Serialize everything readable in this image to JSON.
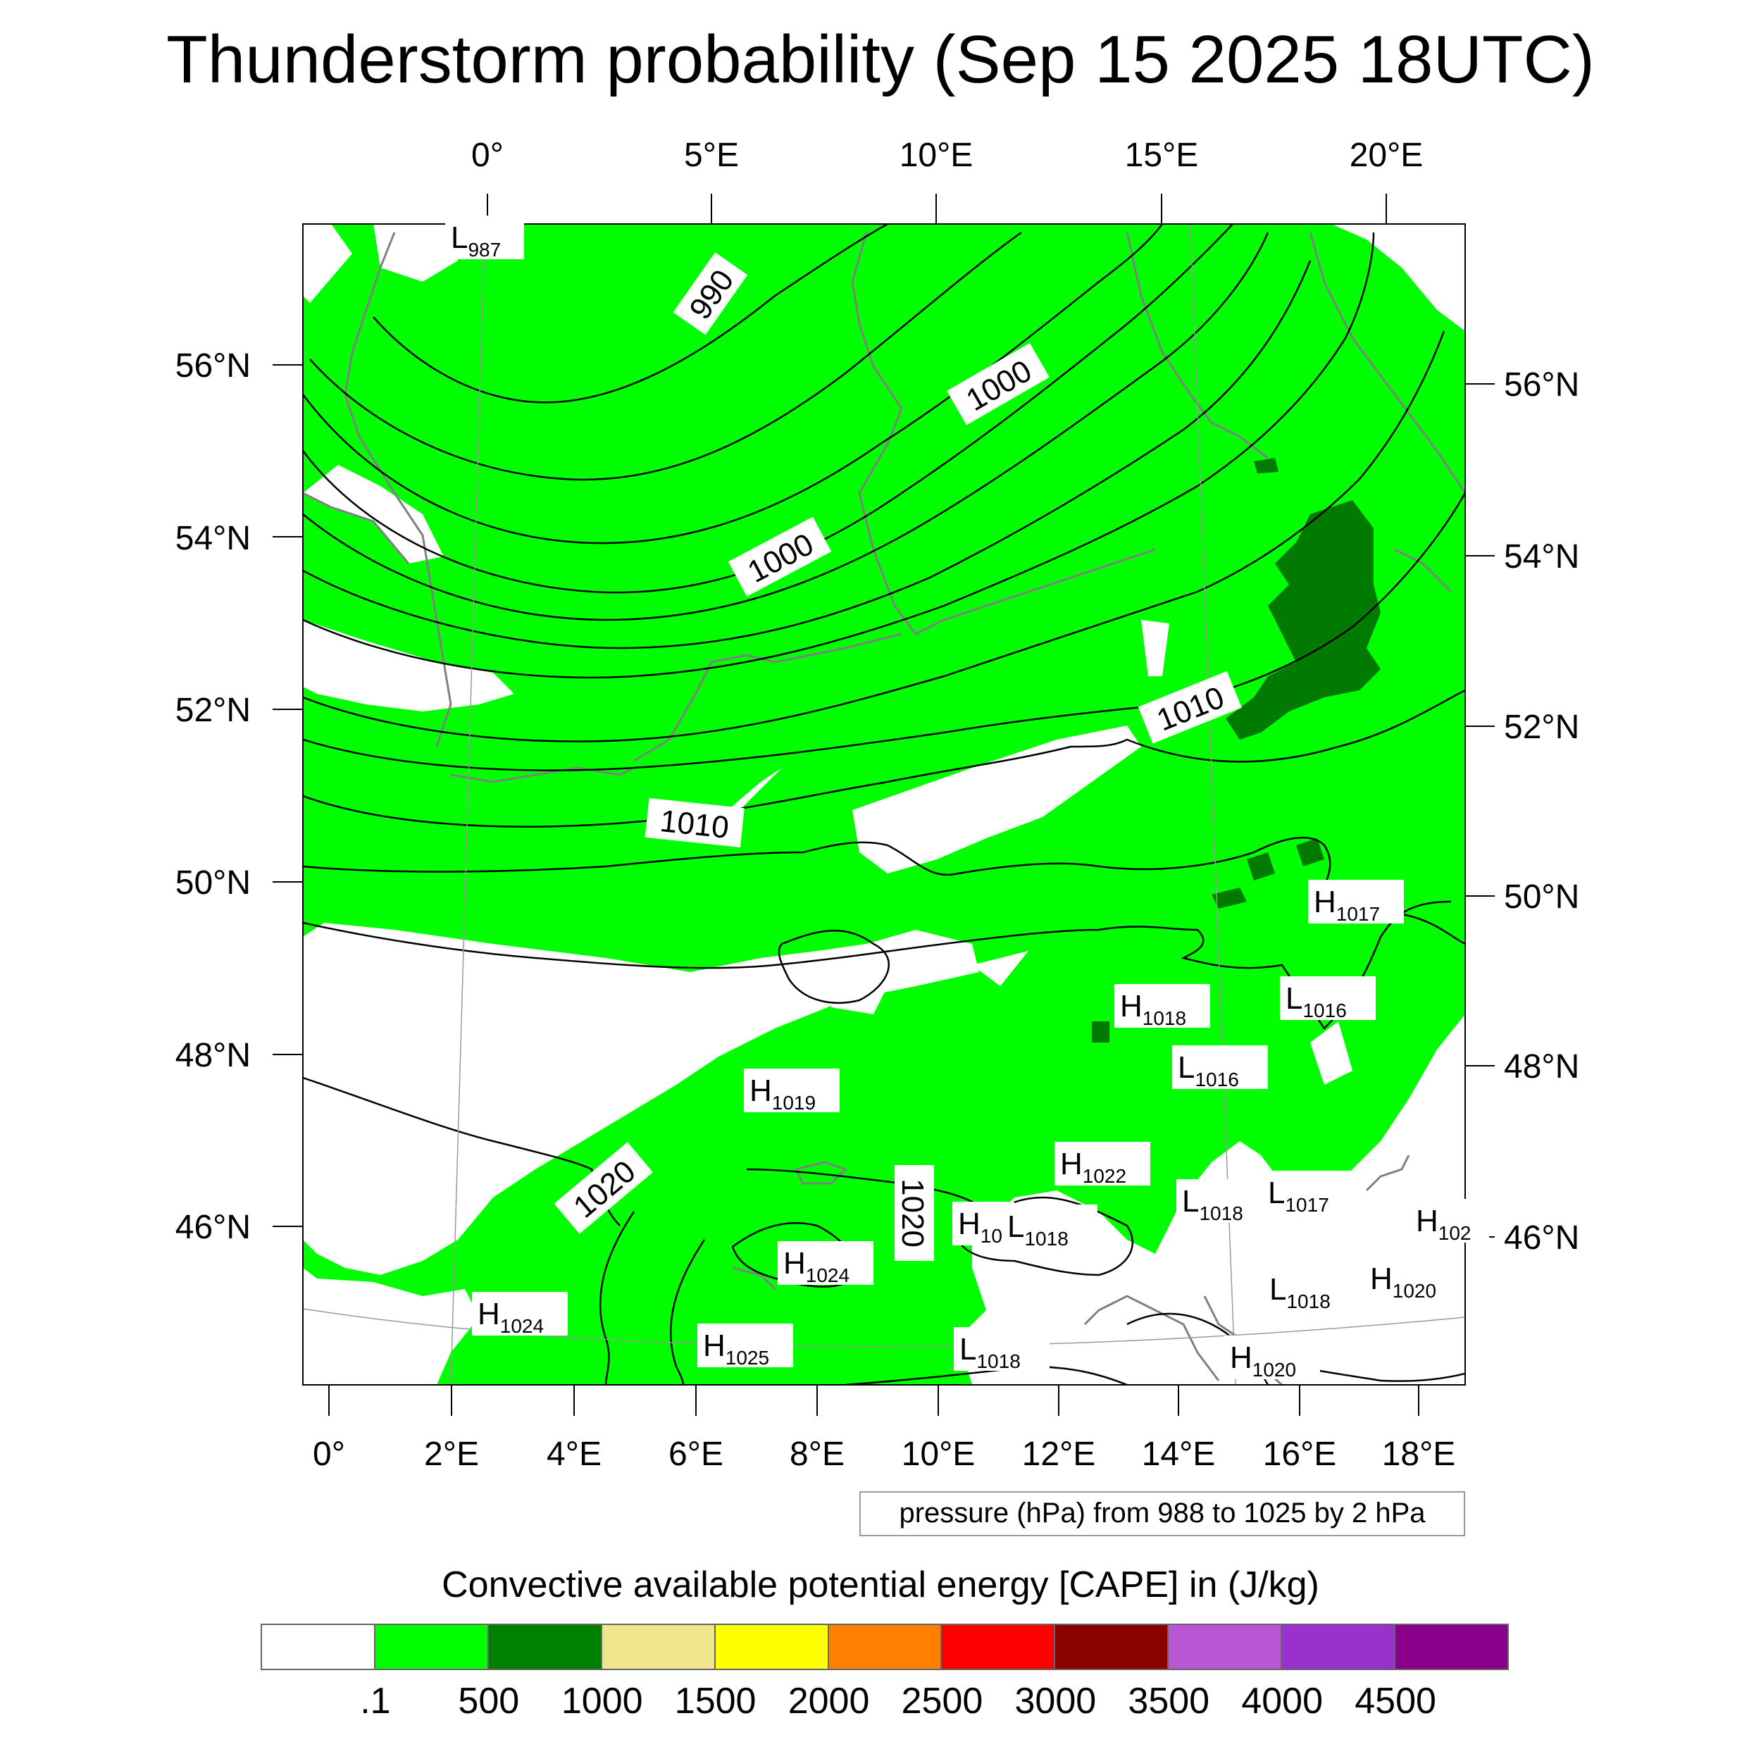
{
  "title": "Thunderstorm probability (Sep 15 2025 18UTC)",
  "top_axis_labels": [
    "0°",
    "5°E",
    "10°E",
    "15°E",
    "20°E"
  ],
  "bottom_axis_labels": [
    "0°",
    "2°E",
    "4°E",
    "6°E",
    "8°E",
    "10°E",
    "12°E",
    "14°E",
    "16°E",
    "18°E"
  ],
  "left_axis_labels": [
    "56°N",
    "54°N",
    "52°N",
    "50°N",
    "48°N",
    "46°N"
  ],
  "right_axis_labels": [
    "56°N",
    "54°N",
    "52°N",
    "50°N",
    "48°N",
    "46°N"
  ],
  "isobar_labels": [
    "990",
    "1000",
    "1000",
    "1010",
    "1010",
    "1020",
    "1020"
  ],
  "pressure_centers": [
    {
      "type": "L",
      "value": "987"
    },
    {
      "type": "H",
      "value": "1017"
    },
    {
      "type": "L",
      "value": "1016"
    },
    {
      "type": "H",
      "value": "1018"
    },
    {
      "type": "L",
      "value": "1016"
    },
    {
      "type": "H",
      "value": "1019"
    },
    {
      "type": "H",
      "value": "1022"
    },
    {
      "type": "L",
      "value": "1018"
    },
    {
      "type": "L",
      "value": "1017"
    },
    {
      "type": "H",
      "value": "102"
    },
    {
      "type": "H",
      "value": "10"
    },
    {
      "type": "L",
      "value": "1018"
    },
    {
      "type": "H",
      "value": "1024"
    },
    {
      "type": "L",
      "value": "1018"
    },
    {
      "type": "H",
      "value": "1020"
    },
    {
      "type": "H",
      "value": "1024"
    },
    {
      "type": "H",
      "value": "1025"
    },
    {
      "type": "L",
      "value": "1018"
    },
    {
      "type": "H",
      "value": "1020"
    }
  ],
  "pressure_note": "pressure (hPa) from 988 to 1025 by 2 hPa",
  "colorbar": {
    "title": "Convective available potential energy [CAPE] in (J/kg)",
    "colors": [
      "#ffffff",
      "#00ff00",
      "#008000",
      "#f0e68c",
      "#ffff00",
      "#ff8000",
      "#ff0000",
      "#8b0000",
      "#ba55d3",
      "#9932cc",
      "#8b008b"
    ],
    "labels": [
      ".1",
      "500",
      "1000",
      "1500",
      "2000",
      "2500",
      "3000",
      "3500",
      "4000",
      "4500"
    ]
  },
  "colors": {
    "cape_low": "#00ff00",
    "cape_mid": "#007a00",
    "coastline": "#808080",
    "isobar": "#000000"
  }
}
